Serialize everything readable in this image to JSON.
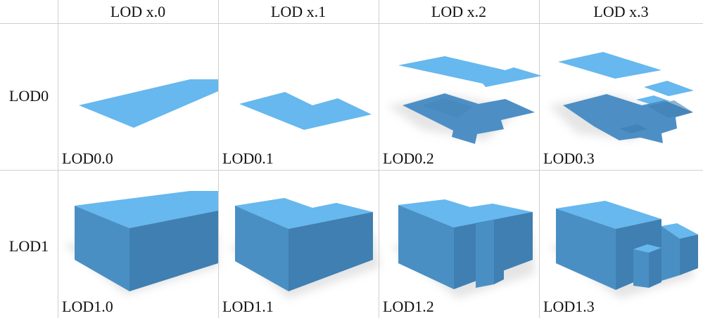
{
  "columns": [
    "LOD x.0",
    "LOD x.1",
    "LOD x.2",
    "LOD x.3"
  ],
  "rows": [
    "LOD0",
    "LOD1"
  ],
  "cells": {
    "lod0": [
      "LOD0.0",
      "LOD0.1",
      "LOD0.2",
      "LOD0.3"
    ],
    "lod1": [
      "LOD1.0",
      "LOD1.1",
      "LOD1.2",
      "LOD1.3"
    ]
  },
  "colors": {
    "roof": "#66b8ee",
    "wall_front": "#4a8fc4",
    "wall_side": "#3f7fb2",
    "footprint_dark": "#4d8fc5",
    "grid_line": "#cfcfcf"
  }
}
